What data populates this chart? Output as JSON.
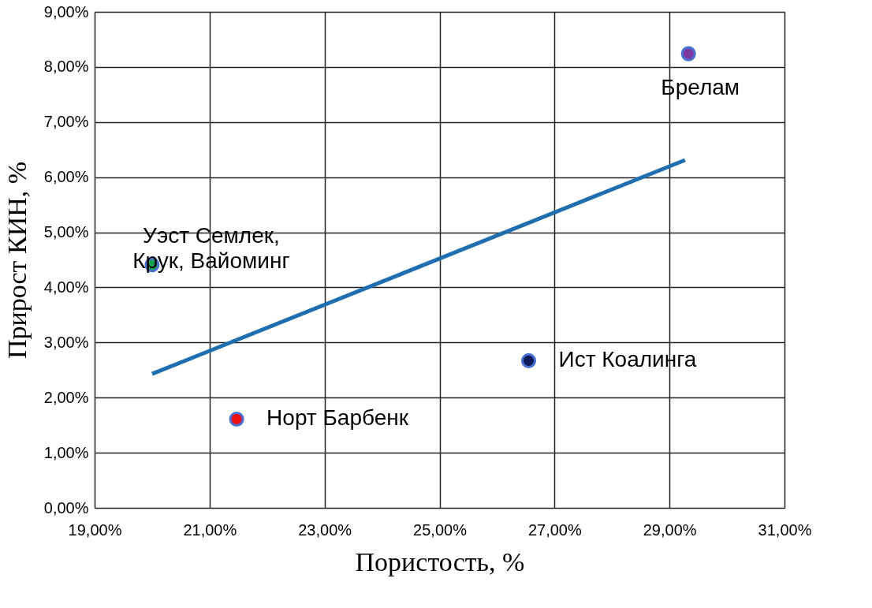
{
  "chart_data": {
    "type": "scatter",
    "xlabel": "Пористость, %",
    "ylabel": "Прирост КИН, %",
    "xlim": [
      19,
      31
    ],
    "ylim": [
      0,
      9
    ],
    "xticks": [
      {
        "value": 19,
        "label": "19,00%"
      },
      {
        "value": 21,
        "label": "21,00%"
      },
      {
        "value": 23,
        "label": "23,00%"
      },
      {
        "value": 25,
        "label": "25,00%"
      },
      {
        "value": 27,
        "label": "27,00%"
      },
      {
        "value": 29,
        "label": "29,00%"
      },
      {
        "value": 31,
        "label": "31,00%"
      }
    ],
    "yticks": [
      {
        "value": 0,
        "label": "0,00%"
      },
      {
        "value": 1,
        "label": "1,00%"
      },
      {
        "value": 2,
        "label": "2,00%"
      },
      {
        "value": 3,
        "label": "3,00%"
      },
      {
        "value": 4,
        "label": "4,00%"
      },
      {
        "value": 5,
        "label": "5,00%"
      },
      {
        "value": 6,
        "label": "6,00%"
      },
      {
        "value": 7,
        "label": "7,00%"
      },
      {
        "value": 8,
        "label": "8,00%"
      },
      {
        "value": 9,
        "label": "9,00%"
      }
    ],
    "grid": true,
    "marker": "circle",
    "series": [
      {
        "x": [
          20.0,
          21.47,
          26.55,
          29.33
        ],
        "values": [
          4.41,
          1.61,
          2.67,
          8.24
        ],
        "colors": [
          "#1aa050",
          "#ee1111",
          "#0a1a5a",
          "#7a3aa0"
        ]
      },
      {
        "type": "line",
        "x": [
          20.0,
          29.27
        ],
        "values": [
          2.43,
          6.31
        ],
        "color": "#1f6eb0",
        "line_style": "solid",
        "marker": "none"
      }
    ],
    "annotations": [
      {
        "text": "Уэст Семлек,\nКрук, Вайоминг",
        "x": 20.0,
        "y": 4.41
      },
      {
        "text": "Норт Барбенк",
        "x": 21.47,
        "y": 1.61
      },
      {
        "text": "Ист Коалинга",
        "x": 26.55,
        "y": 2.67
      },
      {
        "text": "Брелам",
        "x": 29.33,
        "y": 8.24
      }
    ]
  }
}
